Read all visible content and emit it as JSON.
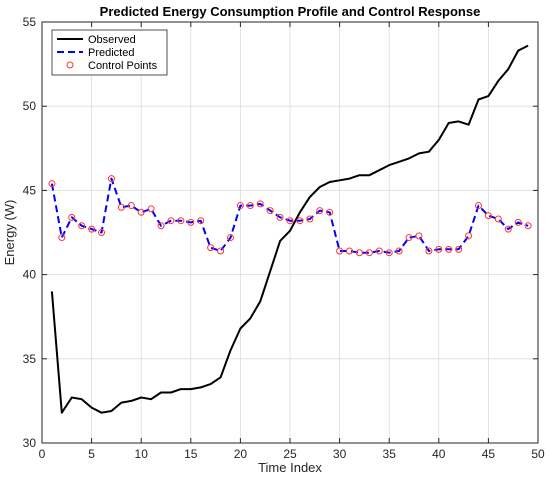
{
  "chart_data": {
    "type": "line",
    "title": "Predicted Energy Consumption Profile and Control Response",
    "xlabel": "Time Index",
    "ylabel": "Energy (W)",
    "xlim": [
      0,
      50
    ],
    "ylim": [
      30,
      55
    ],
    "xticks": [
      0,
      5,
      10,
      15,
      20,
      25,
      30,
      35,
      40,
      45,
      50
    ],
    "yticks": [
      30,
      35,
      40,
      45,
      50,
      55
    ],
    "grid": true,
    "legend_position": "top-left",
    "x": [
      1,
      2,
      3,
      4,
      5,
      6,
      7,
      8,
      9,
      10,
      11,
      12,
      13,
      14,
      15,
      16,
      17,
      18,
      19,
      20,
      21,
      22,
      23,
      24,
      25,
      26,
      27,
      28,
      29,
      30,
      31,
      32,
      33,
      34,
      35,
      36,
      37,
      38,
      39,
      40,
      41,
      42,
      43,
      44,
      45,
      46,
      47,
      48,
      49
    ],
    "series": [
      {
        "name": "Observed",
        "style": "solid",
        "color": "#000000",
        "values": [
          39.0,
          31.8,
          32.7,
          32.6,
          32.1,
          31.8,
          31.9,
          32.4,
          32.5,
          32.7,
          32.6,
          33.0,
          33.0,
          33.2,
          33.2,
          33.3,
          33.5,
          33.9,
          35.5,
          36.8,
          37.4,
          38.4,
          40.2,
          42.0,
          42.6,
          43.7,
          44.6,
          45.2,
          45.5,
          45.6,
          45.7,
          45.9,
          45.9,
          46.2,
          46.5,
          46.7,
          46.9,
          47.2,
          47.3,
          48.0,
          49.0,
          49.1,
          48.9,
          50.4,
          50.6,
          51.5,
          52.2,
          53.3,
          53.6
        ]
      },
      {
        "name": "Predicted",
        "style": "dashed",
        "color": "#0000ff",
        "values": [
          45.4,
          42.2,
          43.4,
          42.9,
          42.7,
          42.5,
          45.7,
          44.0,
          44.1,
          43.7,
          43.9,
          42.9,
          43.2,
          43.2,
          43.1,
          43.2,
          41.6,
          41.4,
          42.2,
          44.1,
          44.1,
          44.2,
          43.8,
          43.4,
          43.2,
          43.2,
          43.3,
          43.8,
          43.7,
          41.4,
          41.4,
          41.3,
          41.3,
          41.4,
          41.3,
          41.4,
          42.2,
          42.3,
          41.4,
          41.5,
          41.5,
          41.5,
          42.3,
          44.1,
          43.5,
          43.3,
          42.7,
          43.1,
          42.9
        ]
      },
      {
        "name": "Control Points",
        "style": "markers",
        "color": "#ff3333",
        "marker": "circle",
        "values": [
          45.4,
          42.2,
          43.4,
          42.9,
          42.7,
          42.5,
          45.7,
          44.0,
          44.1,
          43.7,
          43.9,
          42.9,
          43.2,
          43.2,
          43.1,
          43.2,
          41.6,
          41.4,
          42.2,
          44.1,
          44.1,
          44.2,
          43.8,
          43.4,
          43.2,
          43.2,
          43.3,
          43.8,
          43.7,
          41.4,
          41.4,
          41.3,
          41.3,
          41.4,
          41.3,
          41.4,
          42.2,
          42.3,
          41.4,
          41.5,
          41.5,
          41.5,
          42.3,
          44.1,
          43.5,
          43.3,
          42.7,
          43.1,
          42.9
        ]
      }
    ]
  }
}
